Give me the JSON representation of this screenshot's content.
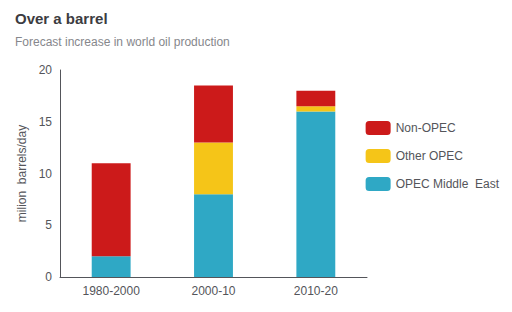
{
  "chart_data": {
    "type": "bar",
    "title": "Over a barrel",
    "subtitle": "Forecast increase in world oil production",
    "categories": [
      "1980-2000",
      "2000-10",
      "2010-20"
    ],
    "series": [
      {
        "name": "OPEC Middle  East",
        "color": "#2fa8c5",
        "values": [
          2.0,
          8.0,
          16.0
        ]
      },
      {
        "name": "Other OPEC",
        "color": "#f5c518",
        "values": [
          0.0,
          5.0,
          0.5
        ]
      },
      {
        "name": "Non-OPEC",
        "color": "#cc1a1a",
        "values": [
          9.0,
          5.5,
          1.5
        ]
      }
    ],
    "stacked": true,
    "ylabel": "milion  barrels/day",
    "ylim": [
      0,
      20
    ],
    "yticks": [
      0,
      5,
      10,
      15,
      20
    ],
    "grid": false,
    "legend": "right"
  }
}
